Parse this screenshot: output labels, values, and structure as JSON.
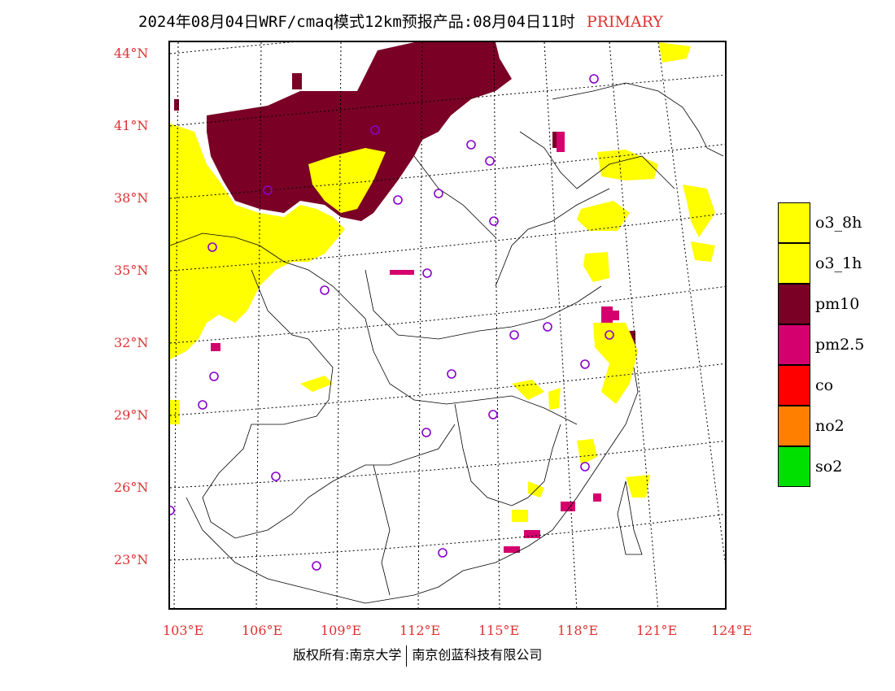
{
  "title": {
    "main": "2024年08月04日WRF/cmaq模式12km预报产品:08月04日11时",
    "tag": "PRIMARY"
  },
  "lat_labels": [
    "44°N",
    "41°N",
    "38°N",
    "35°N",
    "32°N",
    "29°N",
    "26°N",
    "23°N"
  ],
  "lon_labels": [
    "103°E",
    "106°E",
    "109°E",
    "112°E",
    "115°E",
    "118°E",
    "121°E",
    "124°E"
  ],
  "legend": [
    {
      "label": "o3_8h",
      "color": "#ffff00"
    },
    {
      "label": "o3_1h",
      "color": "#ffff00"
    },
    {
      "label": "pm10",
      "color": "#7a0026"
    },
    {
      "label": "pm2.5",
      "color": "#d4006e"
    },
    {
      "label": "co",
      "color": "#ff0000"
    },
    {
      "label": "no2",
      "color": "#ff8000"
    },
    {
      "label": "so2",
      "color": "#00e000"
    }
  ],
  "footer": {
    "left": "版权所有:南京大学",
    "right": "南京创蓝科技有限公司"
  },
  "colors": {
    "accent": "#e03030",
    "station_marker": "#8800cc"
  }
}
